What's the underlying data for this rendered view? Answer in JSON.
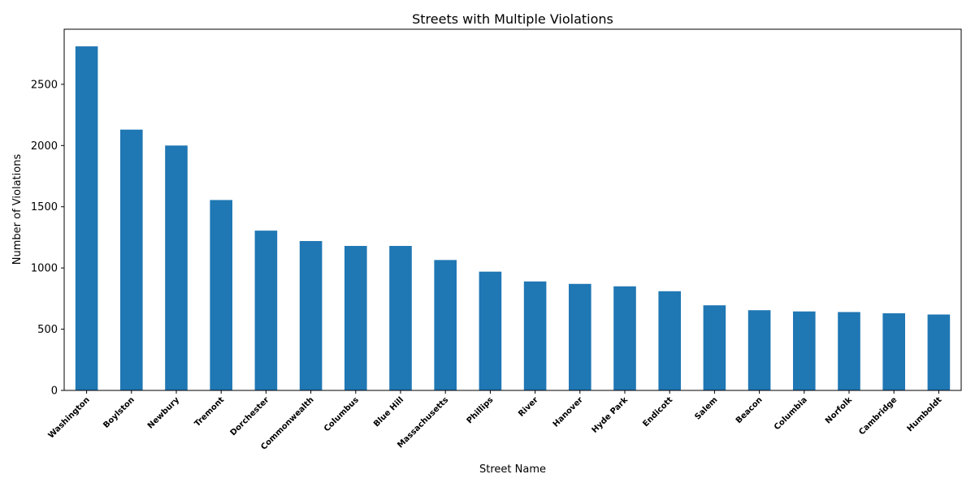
{
  "chart_data": {
    "type": "bar",
    "title": "Streets with Multiple Violations",
    "xlabel": "Street Name",
    "ylabel": "Number of Violations",
    "ylim": [
      0,
      2950
    ],
    "yticks": [
      0,
      500,
      1000,
      1500,
      2000,
      2500
    ],
    "grid": false,
    "bar_color": "#1f77b4",
    "categories": [
      "Washington",
      "Boylston",
      "Newbury",
      "Tremont",
      "Dorchester",
      "Commonwealth",
      "Columbus",
      "Blue Hill",
      "Massachusetts",
      "Phillips",
      "River",
      "Hanover",
      "Hyde Park",
      "Endicott",
      "Salem",
      "Beacon",
      "Columbia",
      "Norfolk",
      "Cambridge",
      "Humboldt"
    ],
    "values": [
      2810,
      2130,
      2000,
      1555,
      1305,
      1220,
      1180,
      1180,
      1065,
      970,
      890,
      870,
      850,
      810,
      695,
      655,
      645,
      640,
      630,
      620
    ]
  }
}
